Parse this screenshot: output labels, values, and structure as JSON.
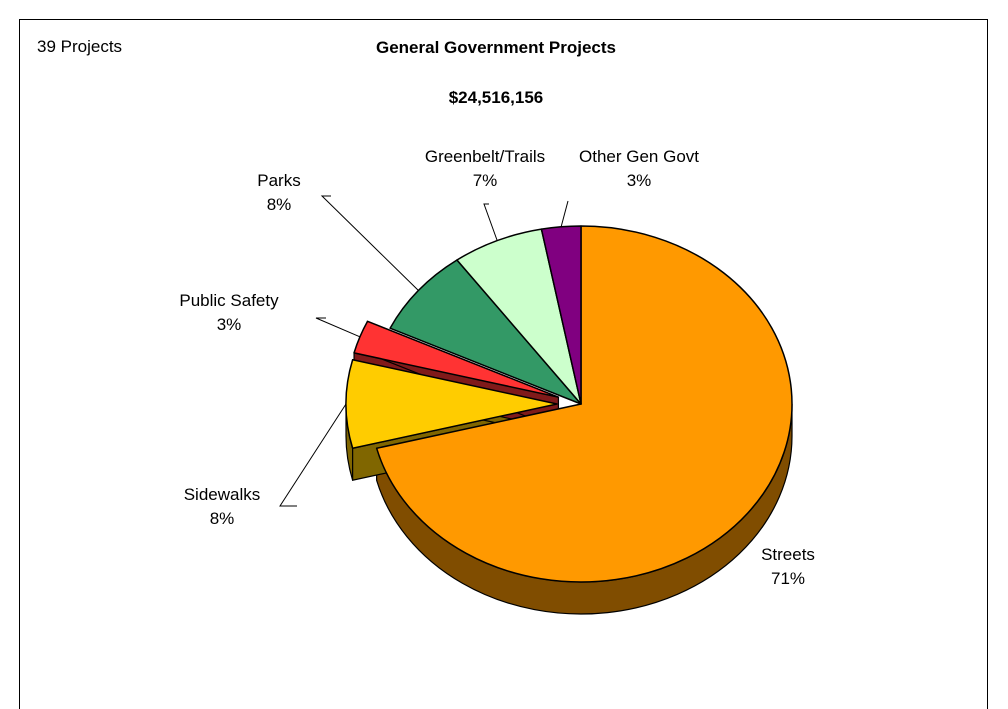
{
  "header": {
    "project_count": "39 Projects",
    "title": "General Government Projects",
    "total": "$24,516,156"
  },
  "chart_data": {
    "type": "pie",
    "style": "3d-exploded",
    "title": "General Government Projects",
    "subtitle": "$24,516,156",
    "categories": [
      "Streets",
      "Sidewalks",
      "Public Safety",
      "Parks",
      "Greenbelt/Trails",
      "Other Gen Govt"
    ],
    "values": [
      71,
      8,
      3,
      8,
      7,
      3
    ],
    "labels": [
      "71%",
      "8%",
      "3%",
      "8%",
      "7%",
      "3%"
    ],
    "colors": [
      "#FF9900",
      "#FFCC00",
      "#FF3333",
      "#339966",
      "#CCFFCC",
      "#800080"
    ],
    "side_colors": [
      "#804D00",
      "#806600",
      "#801A1A",
      "#1A4D33",
      "#667F66",
      "#400040"
    ],
    "exploded": [
      "Sidewalks",
      "Public Safety"
    ]
  }
}
